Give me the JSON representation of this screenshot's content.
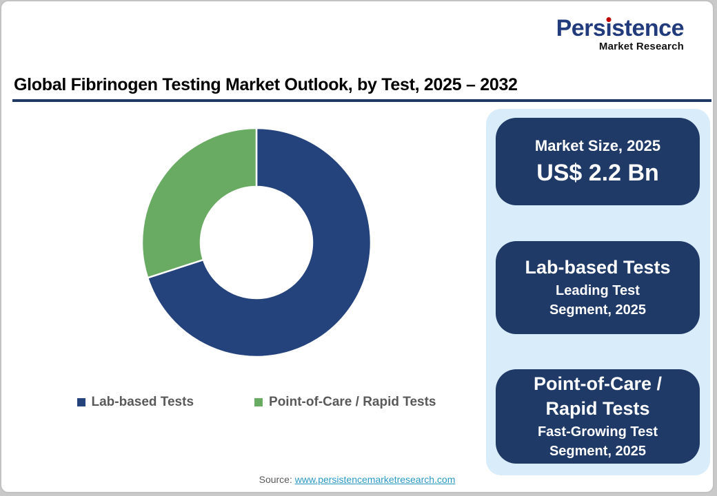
{
  "logo": {
    "brand_parts": [
      "Pers",
      "ı",
      "stence"
    ],
    "brand_name": "Persistence",
    "tagline": "Market Research",
    "brand_color": "#223B7D",
    "dot_color": "#C00000"
  },
  "header": {
    "title": "Global Fibrinogen Testing Market Outlook, by Test, 2025 – 2032",
    "underline_color": "#1F3864"
  },
  "chart_data": {
    "type": "pie",
    "subtype": "donut",
    "title": "Global Fibrinogen Testing Market Outlook, by Test, 2025 – 2032",
    "categories": [
      "Lab-based Tests",
      "Point-of-Care / Rapid Tests"
    ],
    "values": [
      70,
      30
    ],
    "values_note": "percent shares estimated from arc angles; no data labels are printed on the chart",
    "colors": [
      "#24437C",
      "#6AAB64"
    ],
    "start_angle_deg": 0,
    "inner_radius_ratio": 0.49,
    "segment_border_color": "#ffffff",
    "legend_position": "bottom"
  },
  "panel": {
    "background": "#D9ECF9",
    "box_color": "#203A68",
    "boxes": [
      {
        "title_lines": [
          "Market Size, 2025"
        ],
        "value_lines": [
          "US$ 2.2 Bn"
        ]
      },
      {
        "title_lines": [
          "Lab-based Tests"
        ],
        "subtitle_lines": [
          "Leading Test",
          "Segment, 2025"
        ]
      },
      {
        "title_lines": [
          "Point-of-Care /",
          "Rapid Tests"
        ],
        "subtitle_lines": [
          "Fast-Growing Test",
          "Segment, 2025"
        ]
      }
    ]
  },
  "footer": {
    "source_label": "Source:",
    "source_link": "www.persistencemarketresearch.com",
    "link_color": "#2B99C6"
  }
}
